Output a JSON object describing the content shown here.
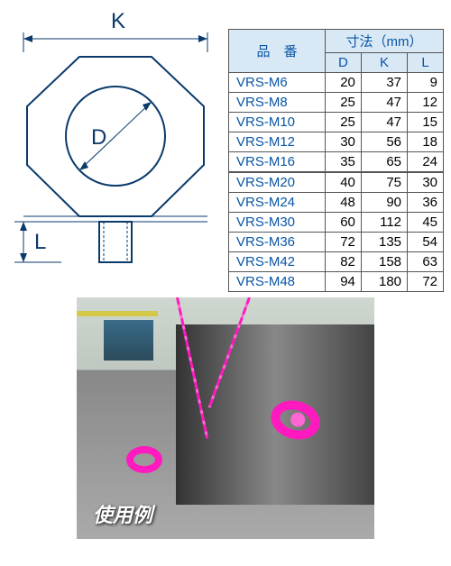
{
  "diagram": {
    "label_K": "K",
    "label_D": "D",
    "label_L": "L",
    "line_color": "#0a3a6b",
    "line_width": 2
  },
  "table": {
    "header_product": "品　番",
    "header_dim": "寸法（mm）",
    "header_D": "D",
    "header_K": "K",
    "header_L": "L",
    "header_bg": "#d9e8f5",
    "header_color": "#0956a6",
    "product_color": "#0956a6",
    "rows": [
      {
        "product": "VRS-M6",
        "D": "20",
        "K": "37",
        "L": "9"
      },
      {
        "product": "VRS-M8",
        "D": "25",
        "K": "47",
        "L": "12"
      },
      {
        "product": "VRS-M10",
        "D": "25",
        "K": "47",
        "L": "15"
      },
      {
        "product": "VRS-M12",
        "D": "30",
        "K": "56",
        "L": "18"
      },
      {
        "product": "VRS-M16",
        "D": "35",
        "K": "65",
        "L": "24"
      },
      {
        "product": "VRS-M20",
        "D": "40",
        "K": "75",
        "L": "30"
      },
      {
        "product": "VRS-M24",
        "D": "48",
        "K": "90",
        "L": "36"
      },
      {
        "product": "VRS-M30",
        "D": "60",
        "K": "112",
        "L": "45"
      },
      {
        "product": "VRS-M36",
        "D": "72",
        "K": "135",
        "L": "54"
      },
      {
        "product": "VRS-M42",
        "D": "82",
        "K": "158",
        "L": "63"
      },
      {
        "product": "VRS-M48",
        "D": "94",
        "K": "180",
        "L": "72"
      }
    ],
    "divider_after_index": 4
  },
  "photo": {
    "label": "使用例",
    "chain_color": "#ff1abf"
  }
}
